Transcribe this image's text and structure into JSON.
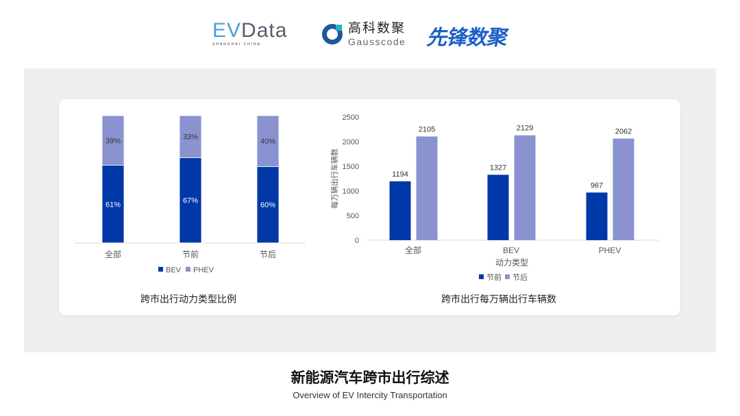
{
  "logos": {
    "evdata": {
      "main_a": "EV",
      "main_b": "Data",
      "sub": "SHANGHAI CHINA"
    },
    "gausscode": {
      "cn": "高科数聚",
      "en": "Gausscode"
    },
    "xianfeng": "先锋数聚"
  },
  "colors": {
    "bev": "#0038a8",
    "phev": "#8a93d0",
    "before": "#0038a8",
    "after": "#8a93d0"
  },
  "chart_data": [
    {
      "type": "bar",
      "stacked": true,
      "percent": true,
      "title": "跨市出行动力类型比例",
      "categories": [
        "全部",
        "节前",
        "节后"
      ],
      "series": [
        {
          "name": "BEV",
          "values": [
            61,
            67,
            60
          ],
          "labels": [
            "61%",
            "67%",
            "60%"
          ]
        },
        {
          "name": "PHEV",
          "values": [
            39,
            33,
            40
          ],
          "labels": [
            "39%",
            "33%",
            "40%"
          ]
        }
      ],
      "legend": "bottom"
    },
    {
      "type": "bar",
      "title": "跨市出行每万辆出行车辆数",
      "xlabel": "动力类型",
      "ylabel": "每万辆出行车辆数",
      "categories": [
        "全部",
        "BEV",
        "PHEV"
      ],
      "ylim": [
        0,
        2500
      ],
      "yticks": [
        "0",
        "500",
        "1000",
        "1500",
        "2000",
        "2500"
      ],
      "series": [
        {
          "name": "节前",
          "values": [
            1194,
            1327,
            967
          ]
        },
        {
          "name": "节后",
          "values": [
            2105,
            2129,
            2062
          ]
        }
      ],
      "legend": "bottom"
    }
  ],
  "footer": {
    "title": "新能源汽车跨市出行综述",
    "subtitle": "Overview of EV Intercity Transportation"
  }
}
